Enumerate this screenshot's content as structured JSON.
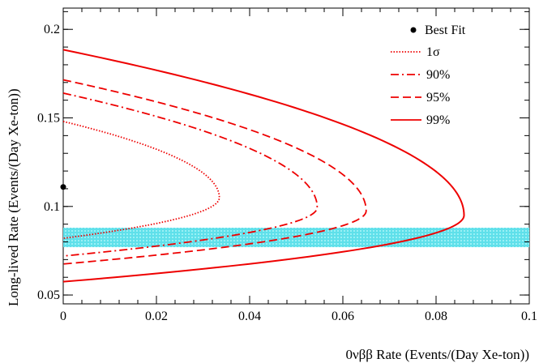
{
  "chart_data": {
    "type": "line",
    "title": "",
    "xlabel": "0νββ Rate (Events/(Day Xe-ton))",
    "ylabel": "Long-lived Rate (Events/(Day Xe-ton))",
    "xlim": [
      0,
      0.1
    ],
    "ylim": [
      0.045,
      0.212
    ],
    "grid": false,
    "legend_position": "top-right",
    "x_ticks": [
      "0",
      "0.02",
      "0.04",
      "0.06",
      "0.08",
      "0.1"
    ],
    "y_ticks": [
      "0.05",
      "0.1",
      "0.15",
      "0.2"
    ],
    "best_fit": {
      "label": "Best Fit",
      "x": 0.0,
      "y": 0.111
    },
    "band": {
      "y_min": 0.077,
      "y_max": 0.088,
      "x_min": 0.0,
      "x_max": 0.1,
      "color": "#00c8d8"
    },
    "series": [
      {
        "name": "1σ",
        "style": "dotted",
        "color": "#ee0000",
        "x_max": 0.0335,
        "y_min": 0.082,
        "y_max": 0.148,
        "y_at_max": 0.105
      },
      {
        "name": "90%",
        "style": "dashdot",
        "color": "#ee0000",
        "x_max": 0.0545,
        "y_min": 0.072,
        "y_max": 0.164,
        "y_at_max": 0.0995
      },
      {
        "name": "95%",
        "style": "dashed",
        "color": "#ee0000",
        "x_max": 0.065,
        "y_min": 0.0675,
        "y_max": 0.1715,
        "y_at_max": 0.0975
      },
      {
        "name": "99%",
        "style": "solid",
        "color": "#ee0000",
        "x_max": 0.086,
        "y_min": 0.0575,
        "y_max": 0.1885,
        "y_at_max": 0.095
      }
    ]
  }
}
